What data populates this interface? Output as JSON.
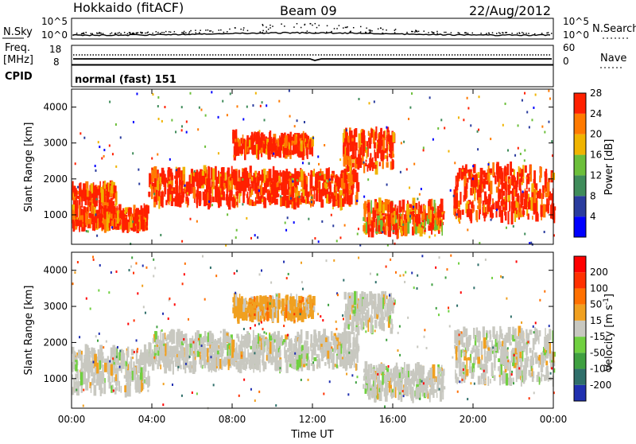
{
  "header": {
    "station": "Hokkaido (fitACF)",
    "beam": "Beam 09",
    "date": "22/Aug/2012"
  },
  "noise_panel": {
    "left_label": "N.Sky",
    "right_label": "N.Search",
    "left_ticks": [
      "10^5",
      "10^0"
    ],
    "right_ticks": [
      "10^5",
      "10^0"
    ]
  },
  "freq_panel": {
    "left_label_top": "Freq.",
    "left_label_bottom": "[MHz]",
    "right_label": "Nave",
    "left_ticks": [
      "18",
      "8"
    ],
    "right_ticks": [
      "60",
      "0"
    ]
  },
  "cpid_panel": {
    "label": "CPID",
    "mode": "normal (fast) 151"
  },
  "x_axis": {
    "label": "Time UT",
    "ticks": [
      "00:00",
      "04:00",
      "08:00",
      "12:00",
      "16:00",
      "20:00",
      "00:00"
    ]
  },
  "chart_data": [
    {
      "type": "heatmap",
      "panel": "power",
      "ylabel": "Slant Range [km]",
      "yticks": [
        "1000",
        "2000",
        "3000",
        "4000"
      ],
      "ylim": [
        180,
        4500
      ],
      "xlim": [
        "00:00",
        "24:00"
      ],
      "colorbar": {
        "label": "Power [dB]",
        "ticks": [
          "4",
          "8",
          "12",
          "16",
          "20",
          "24",
          "28"
        ],
        "colors": [
          "#0000ff",
          "#2a3c9e",
          "#3f8c5a",
          "#6cbf3a",
          "#f0b400",
          "#ff7a00",
          "#ff2000"
        ]
      },
      "regions": [
        {
          "t0": 0.0,
          "t1": 2.2,
          "r0": 1200,
          "r1": 1800,
          "level": "high"
        },
        {
          "t0": 0.0,
          "t1": 3.8,
          "r0": 650,
          "r1": 1150,
          "level": "high"
        },
        {
          "t0": 3.8,
          "t1": 14.2,
          "r0": 1300,
          "r1": 2200,
          "level": "high"
        },
        {
          "t0": 8.0,
          "t1": 12.0,
          "r0": 2700,
          "r1": 3200,
          "level": "high"
        },
        {
          "t0": 13.5,
          "t1": 16.0,
          "r0": 2300,
          "r1": 3300,
          "level": "high"
        },
        {
          "t0": 14.5,
          "t1": 18.5,
          "r0": 500,
          "r1": 1300,
          "level": "mid"
        },
        {
          "t0": 19.0,
          "t1": 24.0,
          "r0": 900,
          "r1": 2300,
          "level": "high"
        }
      ]
    },
    {
      "type": "heatmap",
      "panel": "velocity",
      "ylabel": "Slant Range [km]",
      "yticks": [
        "1000",
        "2000",
        "3000",
        "4000"
      ],
      "ylim": [
        180,
        4500
      ],
      "xlim": [
        "00:00",
        "24:00"
      ],
      "colorbar": {
        "label": "Velocity [m s^-1]",
        "ticks": [
          "200",
          "100",
          "50",
          "15",
          "-15",
          "-50",
          "-100",
          "-200"
        ],
        "colors": [
          "#2030b0",
          "#2f6f6a",
          "#3fa040",
          "#70d040",
          "#c8c8c0",
          "#f0a020",
          "#ff7000",
          "#ff3000",
          "#ff0000"
        ]
      },
      "regions": [
        {
          "t0": 0.0,
          "t1": 3.8,
          "r0": 650,
          "r1": 1800,
          "level": "gray"
        },
        {
          "t0": 3.8,
          "t1": 14.2,
          "r0": 1300,
          "r1": 2200,
          "level": "gray"
        },
        {
          "t0": 8.0,
          "t1": 12.0,
          "r0": 2700,
          "r1": 3200,
          "level": "orange"
        },
        {
          "t0": 13.5,
          "t1": 16.0,
          "r0": 2300,
          "r1": 3300,
          "level": "gray"
        },
        {
          "t0": 14.5,
          "t1": 18.5,
          "r0": 500,
          "r1": 1300,
          "level": "gray"
        },
        {
          "t0": 19.0,
          "t1": 24.0,
          "r0": 900,
          "r1": 2300,
          "level": "gray"
        }
      ]
    }
  ]
}
